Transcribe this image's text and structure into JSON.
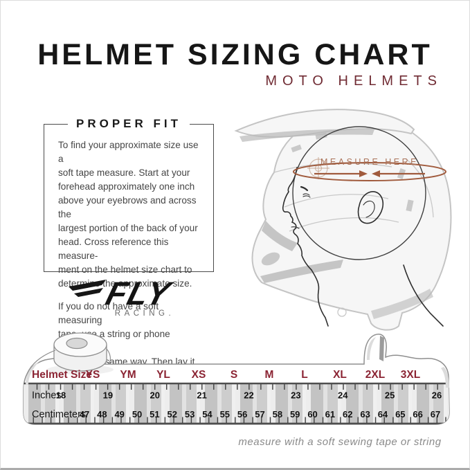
{
  "header": {
    "title": "HELMET SIZING CHART",
    "subtitle": "MOTO HELMETS"
  },
  "proper_fit": {
    "title": "PROPER FIT",
    "paragraph1": "To find your approximate size use a\nsoft tape measure. Start at your\nforehead approximately one inch\nabove your eyebrows and across the\nlargest portion of the back of your\nhead. Cross reference this measure-\nment on the helmet size chart to\ndetermine the approximate size.",
    "paragraph2": "If you do not have a soft measuring\ntape, use a string or phone charging\ncord in the same way. Then lay it\ndown and measure with a ruler."
  },
  "brand": {
    "name": "FLY",
    "subname": "RACING."
  },
  "illustration": {
    "measure_label": "MEASURE HERE"
  },
  "tape": {
    "row_headers": {
      "size": "Helmet Size",
      "inches": "Inches",
      "centimeters": "Centimeters"
    },
    "sizes": [
      "YS",
      "YM",
      "YL",
      "XS",
      "S",
      "M",
      "L",
      "XL",
      "2XL",
      "3XL"
    ],
    "inches": [
      "18",
      "19",
      "20",
      "21",
      "22",
      "23",
      "24",
      "25",
      "26"
    ],
    "centimeters": [
      "47",
      "48",
      "49",
      "50",
      "51",
      "52",
      "53",
      "54",
      "55",
      "56",
      "57",
      "58",
      "59",
      "60",
      "61",
      "62",
      "63",
      "64",
      "65",
      "66",
      "67"
    ]
  },
  "footer": {
    "caption": "measure with a soft sewing tape or string"
  },
  "colors": {
    "title": "#161616",
    "subtitle_maroon": "#702b33",
    "size_maroon": "#8b2433",
    "copper_accent": "#a05a3c"
  }
}
